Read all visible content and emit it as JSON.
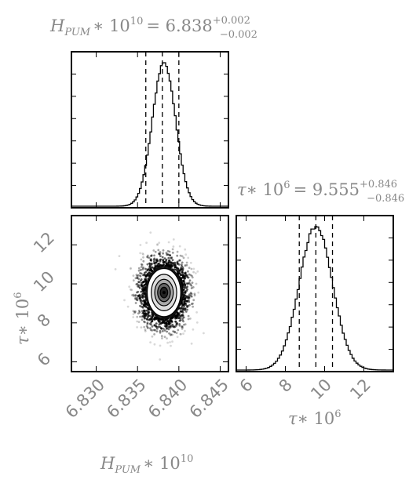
{
  "chart_data": {
    "type": "corner",
    "parameters": [
      {
        "symbol": "H_PUM * 10^10",
        "title": {
          "lhs": "H",
          "sub": "PUM",
          "mult": "∗ 10",
          "sup": "10",
          "eq": "= 6.838",
          "plus": "+0.002",
          "minus": "−0.002"
        },
        "axis_label": {
          "lhs": "H",
          "sub": "PUM",
          "mult": "∗ 10",
          "sup": "10"
        },
        "median": 6.838,
        "err_plus": 0.002,
        "err_minus": 0.002,
        "quantiles": [
          6.836,
          6.838,
          6.84
        ],
        "xlim": [
          6.827,
          6.846
        ],
        "ticks": [
          6.83,
          6.835,
          6.84,
          6.845
        ],
        "tick_labels": [
          "6.830",
          "6.835",
          "6.840",
          "6.845"
        ],
        "hist": {
          "mean": 6.8382,
          "sd": 0.0014
        }
      },
      {
        "symbol": "tau * 10^6",
        "title": {
          "lhs": "τ",
          "mult": "∗ 10",
          "sup": "6",
          "eq": "= 9.555",
          "plus": "+0.846",
          "minus": "−0.846"
        },
        "axis_label": {
          "lhs": "τ",
          "mult": "∗ 10",
          "sup": "6"
        },
        "median": 9.555,
        "err_plus": 0.846,
        "err_minus": 0.846,
        "quantiles": [
          8.709,
          9.555,
          10.401
        ],
        "xlim": [
          5.5,
          13.5
        ],
        "ticks": [
          6,
          8,
          10,
          12
        ],
        "tick_labels": [
          "6",
          "8",
          "10",
          "12"
        ],
        "hist": {
          "mean": 9.555,
          "sd": 0.85
        }
      }
    ],
    "grid": false,
    "scatter_points_shown": true,
    "contour_levels": 5
  },
  "colors": {
    "axis": "#000000",
    "text": "#888888",
    "density": "#000000",
    "background": "#ffffff"
  }
}
